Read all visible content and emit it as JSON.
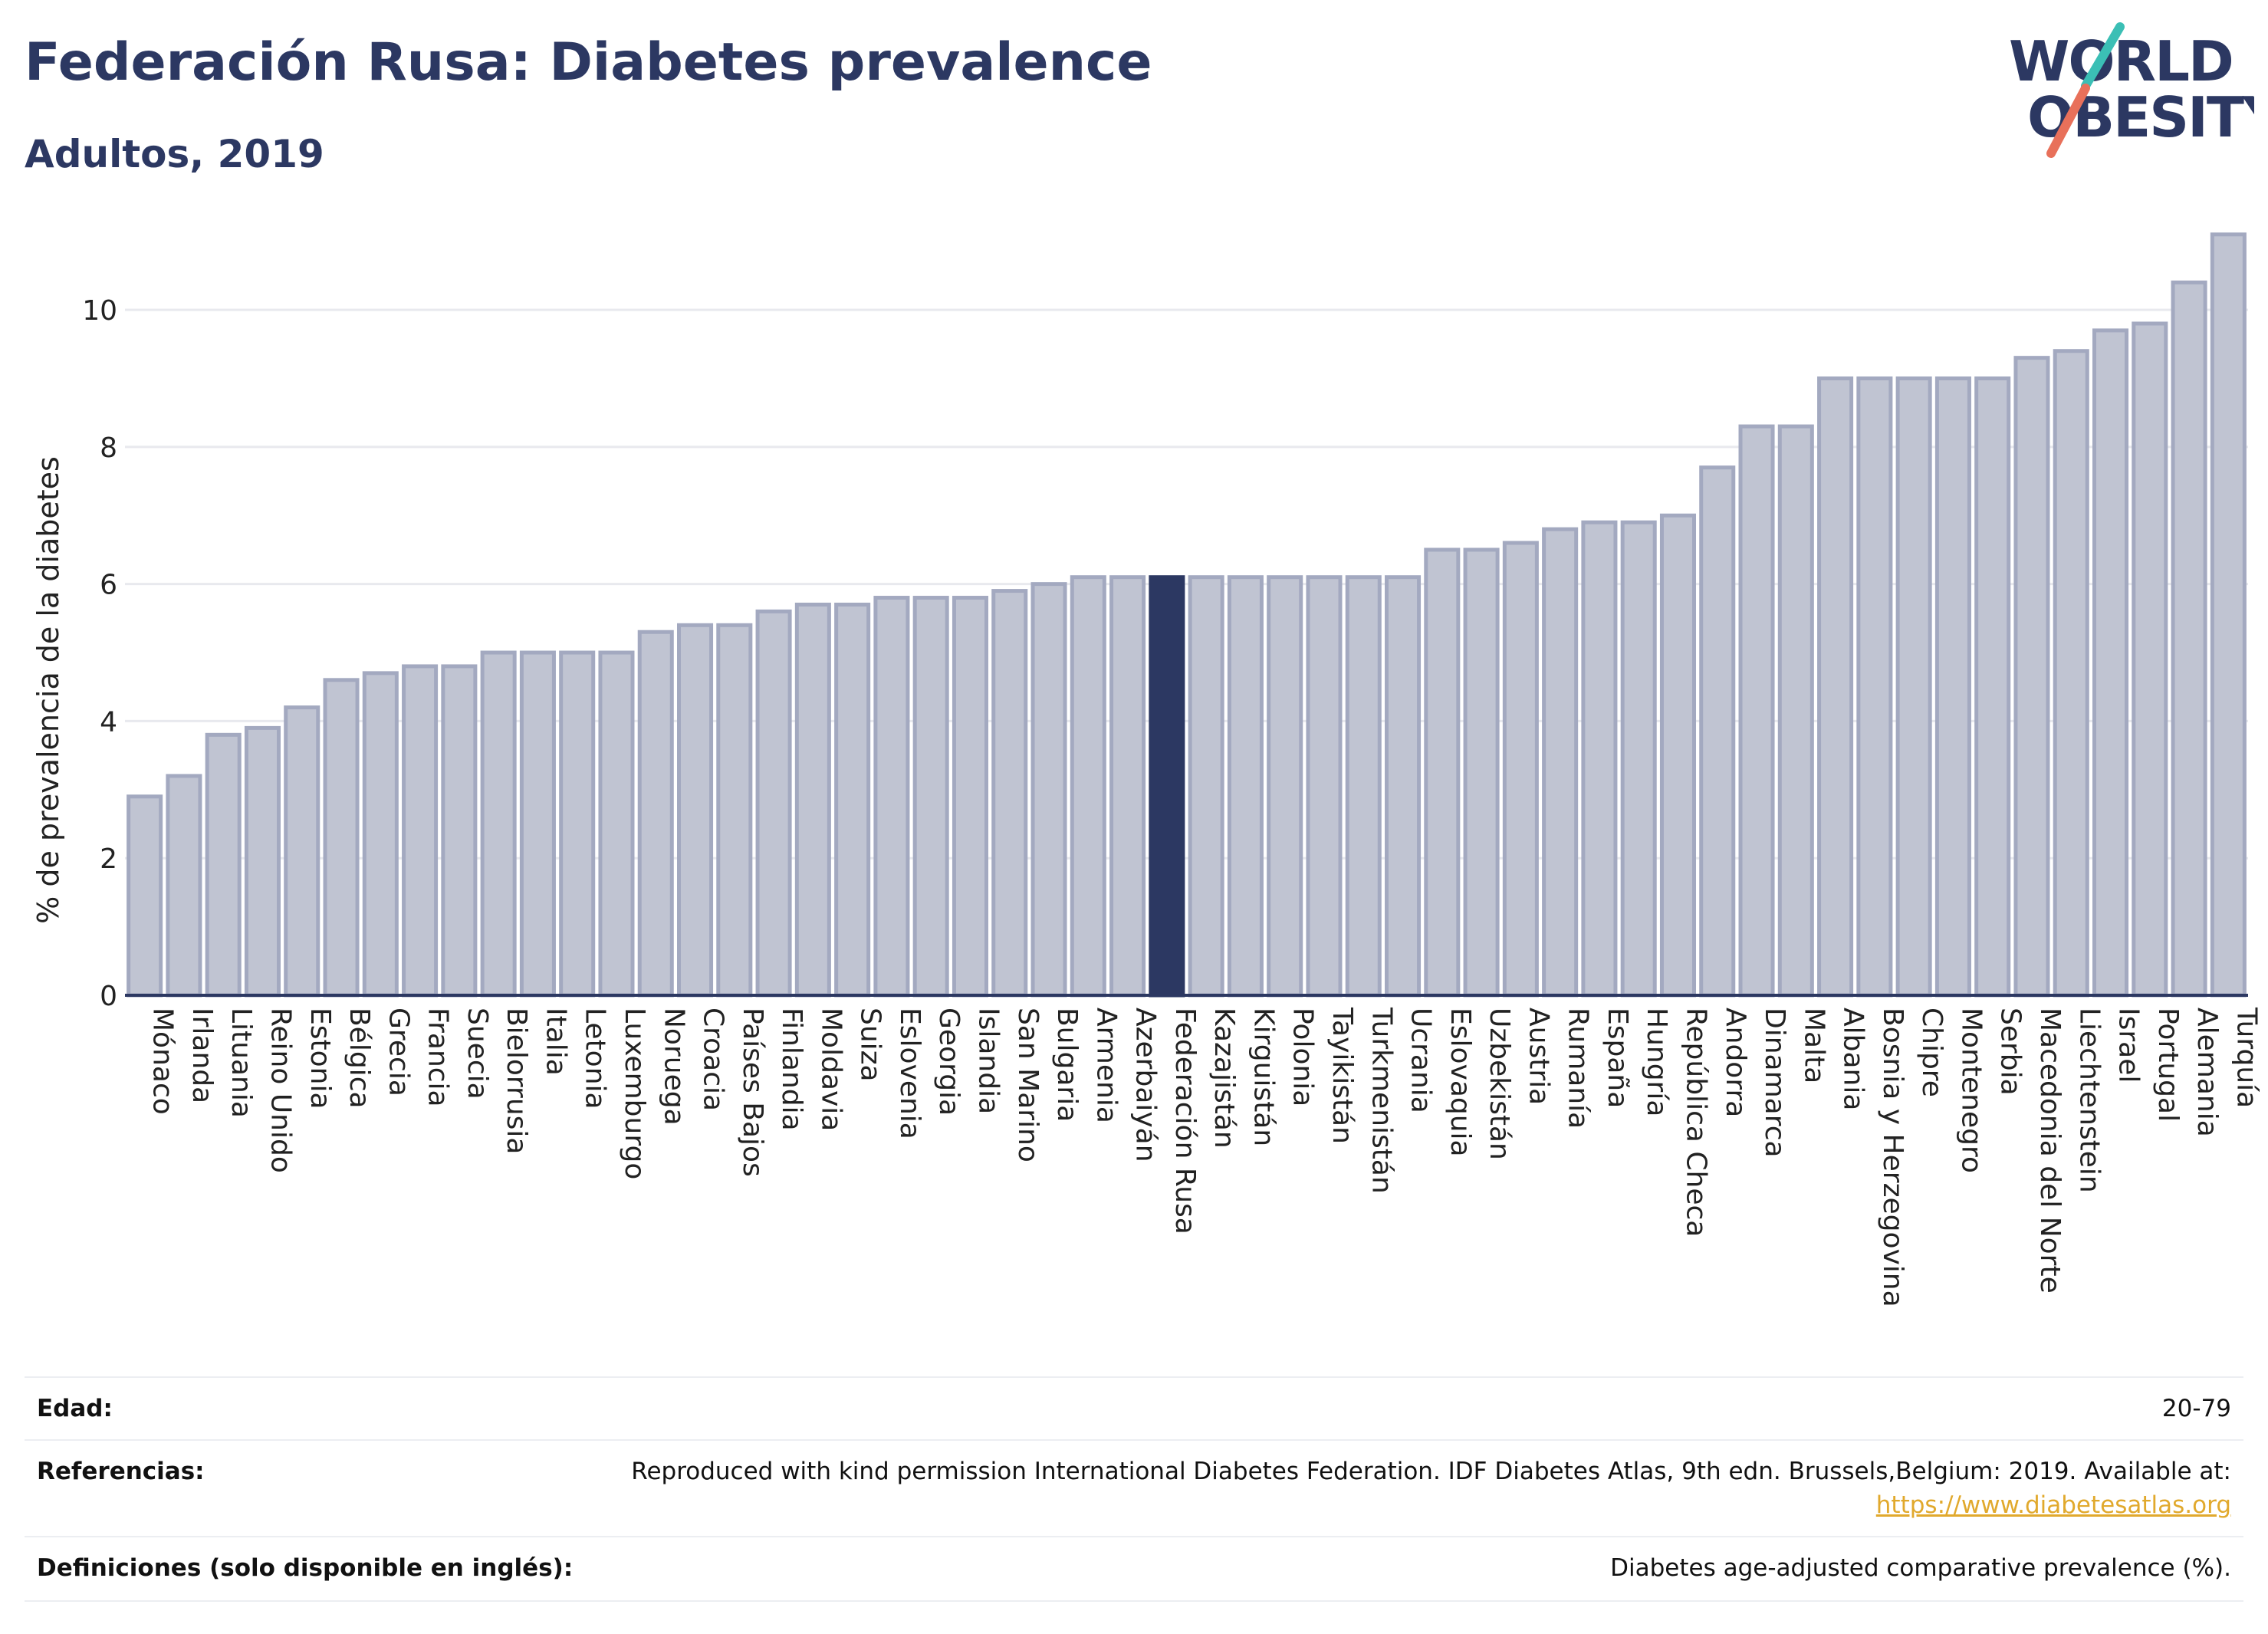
{
  "header": {
    "title": "Federación Rusa: Diabetes prevalence",
    "subtitle": "Adultos, 2019"
  },
  "logo": {
    "line1": "WORLD",
    "line2": "OBESITY",
    "colors": {
      "text": "#2c3862",
      "slash_teal": "#3bbfb5",
      "slash_coral": "#e8705a"
    }
  },
  "colors": {
    "bar": "#c0c4d2",
    "bar_stroke": "#a3a9c0",
    "highlight": "#2c3862",
    "axis": "#2c3862",
    "grid": "#e8e9ee"
  },
  "chart_data": {
    "type": "bar",
    "ylabel": "% de prevalencia de la diabetes",
    "ylim": [
      0,
      11.5
    ],
    "yticks": [
      0,
      2,
      4,
      6,
      8,
      10
    ],
    "grid": true,
    "highlight": "Federación Rusa",
    "categories": [
      "Mónaco",
      "Irlanda",
      "Lituania",
      "Reino Unido",
      "Estonia",
      "Bélgica",
      "Grecia",
      "Francia",
      "Suecia",
      "Bielorrusia",
      "Italia",
      "Letonia",
      "Luxemburgo",
      "Noruega",
      "Croacia",
      "Países Bajos",
      "Finlandia",
      "Moldavia",
      "Suiza",
      "Eslovenia",
      "Georgia",
      "Islandia",
      "San Marino",
      "Bulgaria",
      "Armenia",
      "Azerbaiyán",
      "Federación Rusa",
      "Kazajistán",
      "Kirguistán",
      "Polonia",
      "Tayikistán",
      "Turkmenistán",
      "Ucrania",
      "Eslovaquia",
      "Uzbekistán",
      "Austria",
      "Rumanía",
      "España",
      "Hungría",
      "República Checa",
      "Andorra",
      "Dinamarca",
      "Malta",
      "Albania",
      "Bosnia y Herzegovina",
      "Chipre",
      "Montenegro",
      "Serbia",
      "Macedonia del Norte",
      "Liechtenstein",
      "Israel",
      "Portugal",
      "Alemania",
      "Turquía"
    ],
    "values": [
      2.9,
      3.2,
      3.8,
      3.9,
      4.2,
      4.6,
      4.7,
      4.8,
      4.8,
      5.0,
      5.0,
      5.0,
      5.0,
      5.3,
      5.4,
      5.4,
      5.6,
      5.7,
      5.7,
      5.8,
      5.8,
      5.8,
      5.9,
      6.0,
      6.1,
      6.1,
      6.1,
      6.1,
      6.1,
      6.1,
      6.1,
      6.1,
      6.1,
      6.5,
      6.5,
      6.6,
      6.8,
      6.9,
      6.9,
      7.0,
      7.7,
      8.3,
      8.3,
      9.0,
      9.0,
      9.0,
      9.0,
      9.0,
      9.3,
      9.4,
      9.7,
      9.8,
      10.4,
      11.1
    ]
  },
  "meta": {
    "edad": {
      "label": "Edad:",
      "value": "20-79"
    },
    "referencias": {
      "label": "Referencias:",
      "value": "Reproduced with kind permission International Diabetes Federation. IDF Diabetes Atlas, 9th edn. Brussels,Belgium: 2019. Available at:",
      "link": "https://www.diabetesatlas.org"
    },
    "definiciones": {
      "label": "Definiciones (solo disponible en inglés):",
      "value": "Diabetes age-adjusted comparative prevalence (%)."
    }
  }
}
